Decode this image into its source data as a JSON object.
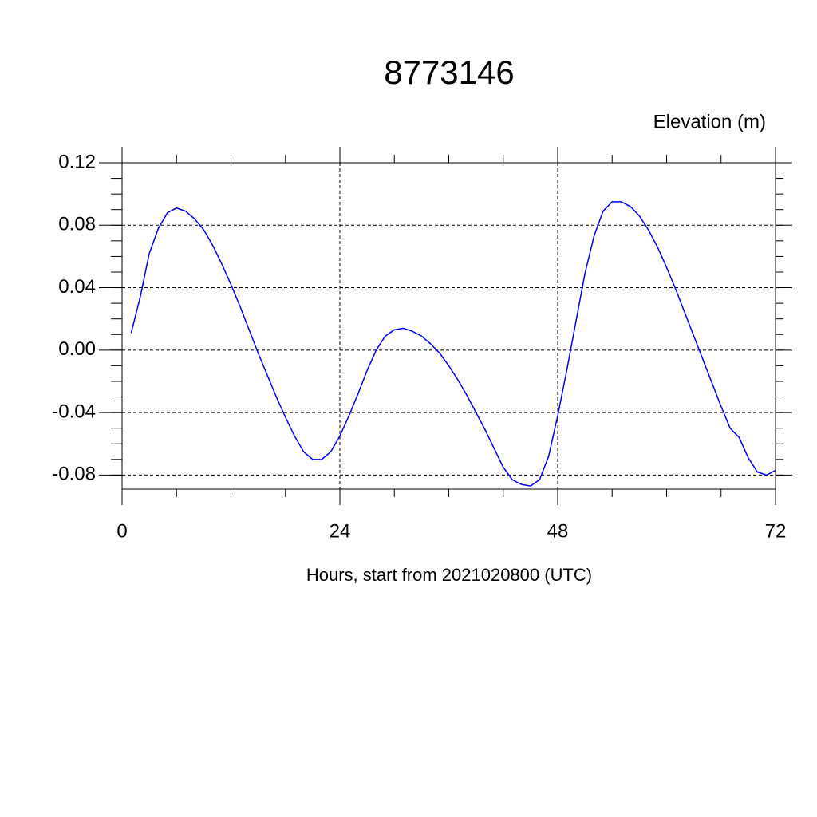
{
  "chart_data": {
    "type": "line",
    "title": "8773146",
    "subtitle": "Elevation (m)",
    "x_label": "Hours, start from 2021020800 (UTC)",
    "x": [
      1,
      2,
      3,
      4,
      5,
      6,
      7,
      8,
      9,
      10,
      11,
      12,
      13,
      14,
      15,
      16,
      17,
      18,
      19,
      20,
      21,
      22,
      23,
      24,
      25,
      26,
      27,
      28,
      29,
      30,
      31,
      32,
      33,
      34,
      35,
      36,
      37,
      38,
      39,
      40,
      41,
      42,
      43,
      44,
      45,
      46,
      47,
      48,
      49,
      50,
      51,
      52,
      53,
      54,
      55,
      56,
      57,
      58,
      59,
      60,
      61,
      62,
      63,
      64,
      65,
      66,
      67,
      68,
      69,
      70,
      71,
      72
    ],
    "series": [
      {
        "color": "#0000ff",
        "values": [
          0.011,
          0.034,
          0.062,
          0.078,
          0.088,
          0.091,
          0.089,
          0.084,
          0.077,
          0.067,
          0.055,
          0.042,
          0.028,
          0.013,
          -0.002,
          -0.016,
          -0.03,
          -0.043,
          -0.055,
          -0.065,
          -0.07,
          -0.07,
          -0.065,
          -0.055,
          -0.042,
          -0.028,
          -0.013,
          0.0,
          0.009,
          0.013,
          0.014,
          0.012,
          0.009,
          0.004,
          -0.002,
          -0.01,
          -0.019,
          -0.029,
          -0.04,
          -0.051,
          -0.063,
          -0.075,
          -0.083,
          -0.086,
          -0.087,
          -0.083,
          -0.068,
          -0.042,
          -0.013,
          0.018,
          0.049,
          0.073,
          0.089,
          0.095,
          0.095,
          0.092,
          0.086,
          0.077,
          0.066,
          0.053,
          0.039,
          0.024,
          0.009,
          -0.006,
          -0.021,
          -0.036,
          -0.05,
          -0.056,
          -0.069,
          -0.078,
          -0.08,
          -0.077
        ]
      }
    ],
    "xlim": [
      0,
      72
    ],
    "xticks": [
      0,
      24,
      48,
      72
    ],
    "ylim": [
      -0.089,
      0.12
    ],
    "yticks": [
      0.12,
      0.08,
      0.04,
      {
        "value": 0,
        "label": "0.00"
      },
      -0.04,
      -0.08
    ],
    "grid": true
  }
}
